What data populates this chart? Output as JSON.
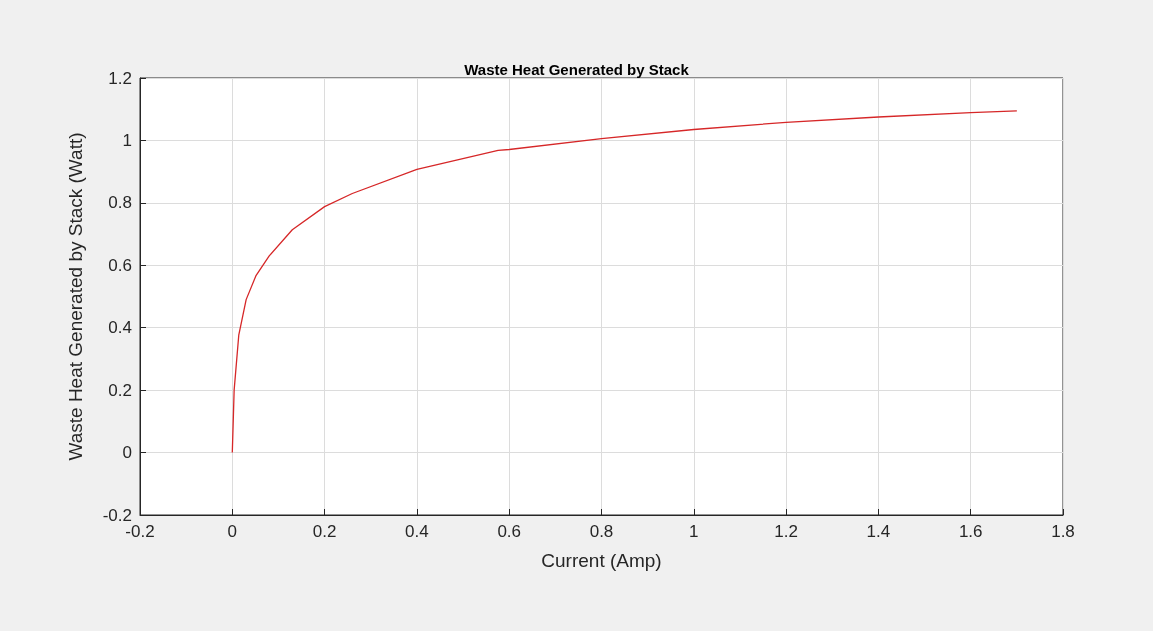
{
  "chart_data": {
    "type": "line",
    "title": "Waste Heat Generated by Stack",
    "xlabel": "Current (Amp)",
    "ylabel": "Waste Heat Generated by Stack (Watt)",
    "x": [
      0,
      0.004,
      0.014,
      0.03,
      0.051,
      0.08,
      0.13,
      0.2,
      0.26,
      0.4,
      0.576,
      0.6,
      0.8,
      1.0,
      1.2,
      1.4,
      1.6,
      1.7
    ],
    "series": [
      {
        "color": "#d62728",
        "values": [
          0,
          0.2,
          0.376,
          0.49,
          0.566,
          0.63,
          0.714,
          0.788,
          0.83,
          0.907,
          0.968,
          0.971,
          1.006,
          1.035,
          1.058,
          1.075,
          1.089,
          1.095
        ]
      }
    ],
    "xlim": [
      -0.2,
      1.8
    ],
    "xticks": [
      -0.2,
      0,
      0.2,
      0.4,
      0.6,
      0.8,
      1,
      1.2,
      1.4,
      1.6,
      1.8
    ],
    "ylim": [
      -0.2,
      1.2
    ],
    "yticks": [
      -0.2,
      0,
      0.2,
      0.4,
      0.6,
      0.8,
      1,
      1.2
    ],
    "grid": true,
    "marker": "none",
    "line_style": "solid"
  }
}
